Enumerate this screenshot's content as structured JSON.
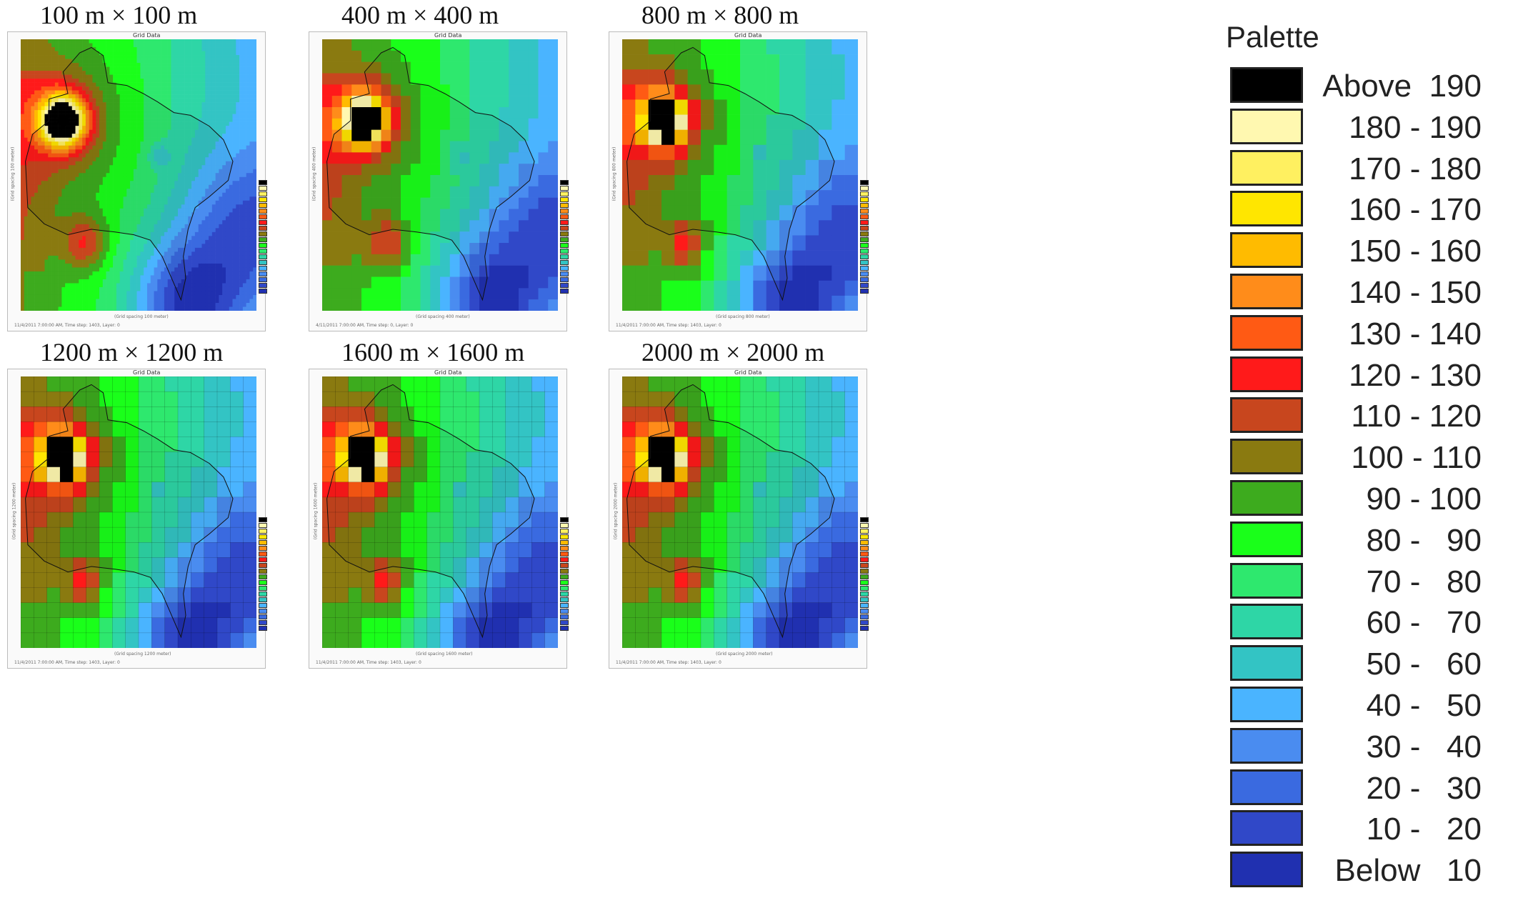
{
  "panels": [
    {
      "title": "100 m × 100 m",
      "spacing": 100,
      "footer": "11/4/2011 7:00:00 AM, Time step: 1403, Layer: 0",
      "xcap": "(Grid spacing 100 meter)",
      "ycap": "(Grid spacing 100 meter)"
    },
    {
      "title": "400 m × 400 m",
      "spacing": 400,
      "footer": "4/11/2011 7:00:00 AM, Time step: 0, Layer: 0",
      "xcap": "(Grid spacing 400 meter)",
      "ycap": "(Grid spacing 400 meter)"
    },
    {
      "title": "800 m × 800 m",
      "spacing": 800,
      "footer": "11/4/2011 7:00:00 AM, Time step: 1403, Layer: 0",
      "xcap": "(Grid spacing 800 meter)",
      "ycap": "(Grid spacing 800 meter)"
    },
    {
      "title": "1200 m × 1200 m",
      "spacing": 1200,
      "footer": "11/4/2011 7:00:00 AM, Time step: 1403, Layer: 0",
      "xcap": "(Grid spacing 1200 meter)",
      "ycap": "(Grid spacing 1200 meter)"
    },
    {
      "title": "1600 m × 1600 m",
      "spacing": 1600,
      "footer": "11/4/2011 7:00:00 AM, Time step: 1403, Layer: 0",
      "xcap": "(Grid spacing 1600 meter)",
      "ycap": "(Grid spacing 1600 meter)"
    },
    {
      "title": "2000 m × 2000 m",
      "spacing": 2000,
      "footer": "11/4/2011 7:00:00 AM, Time step: 1403, Layer: 0",
      "xcap": "(Grid spacing 2000 meter)",
      "ycap": "(Grid spacing 2000 meter)"
    }
  ],
  "panel_header": "Grid Data",
  "palette": {
    "title": "Palette",
    "items": [
      {
        "label": "Above  190",
        "color": "#000000"
      },
      {
        "label": "180 - 190",
        "color": "#fff8b0"
      },
      {
        "label": "170 - 180",
        "color": "#fff060"
      },
      {
        "label": "160 - 170",
        "color": "#ffe600"
      },
      {
        "label": "150 - 160",
        "color": "#ffbb00"
      },
      {
        "label": "140 - 150",
        "color": "#ff8c1a"
      },
      {
        "label": "130 - 140",
        "color": "#ff5a14"
      },
      {
        "label": "120 - 130",
        "color": "#ff1a1a"
      },
      {
        "label": "110 - 120",
        "color": "#c8461e"
      },
      {
        "label": "100 - 110",
        "color": "#8a7a10"
      },
      {
        "label": "90 - 100",
        "color": "#3dab1e"
      },
      {
        "label": "80 -   90",
        "color": "#1aff1a"
      },
      {
        "label": "70 -   80",
        "color": "#2ee86e"
      },
      {
        "label": "60 -   70",
        "color": "#2ed6a6"
      },
      {
        "label": "50 -   60",
        "color": "#33c4c4"
      },
      {
        "label": "40 -   50",
        "color": "#4ab4ff"
      },
      {
        "label": "30 -   40",
        "color": "#4a8cf0"
      },
      {
        "label": "20 -   30",
        "color": "#3a6ae0"
      },
      {
        "label": "10 -   20",
        "color": "#3048c8"
      },
      {
        "label": "Below   10",
        "color": "#2030b0"
      }
    ]
  }
}
